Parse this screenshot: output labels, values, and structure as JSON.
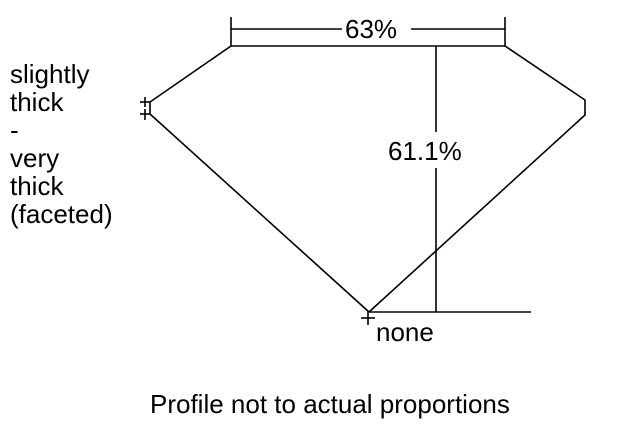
{
  "diagram": {
    "table_percent": "63%",
    "depth_percent": "61.1%",
    "girdle_label_lines": [
      "slightly",
      "thick",
      "-",
      "very",
      "thick",
      "(faceted)"
    ],
    "culet_label": "none",
    "caption": "Profile not to actual proportions",
    "line_color": "#000000"
  }
}
